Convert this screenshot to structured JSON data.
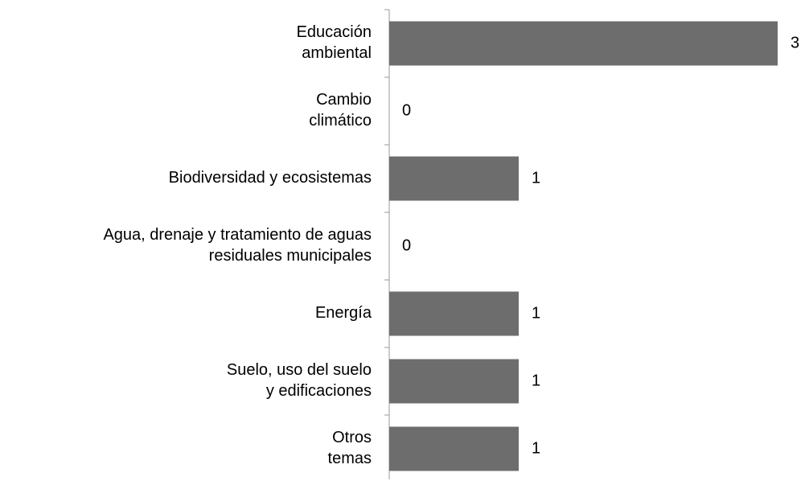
{
  "chart_data": {
    "type": "bar",
    "orientation": "horizontal",
    "categories": [
      "Educación\nambiental",
      "Cambio\nclimático",
      "Biodiversidad y ecosistemas",
      "Agua, drenaje y tratamiento de aguas\nresiduales municipales",
      "Energía",
      "Suelo, uso del suelo\ny edificaciones",
      "Otros\ntemas"
    ],
    "values": [
      3,
      0,
      1,
      0,
      1,
      1,
      1
    ],
    "color": "#6d6d6d"
  }
}
